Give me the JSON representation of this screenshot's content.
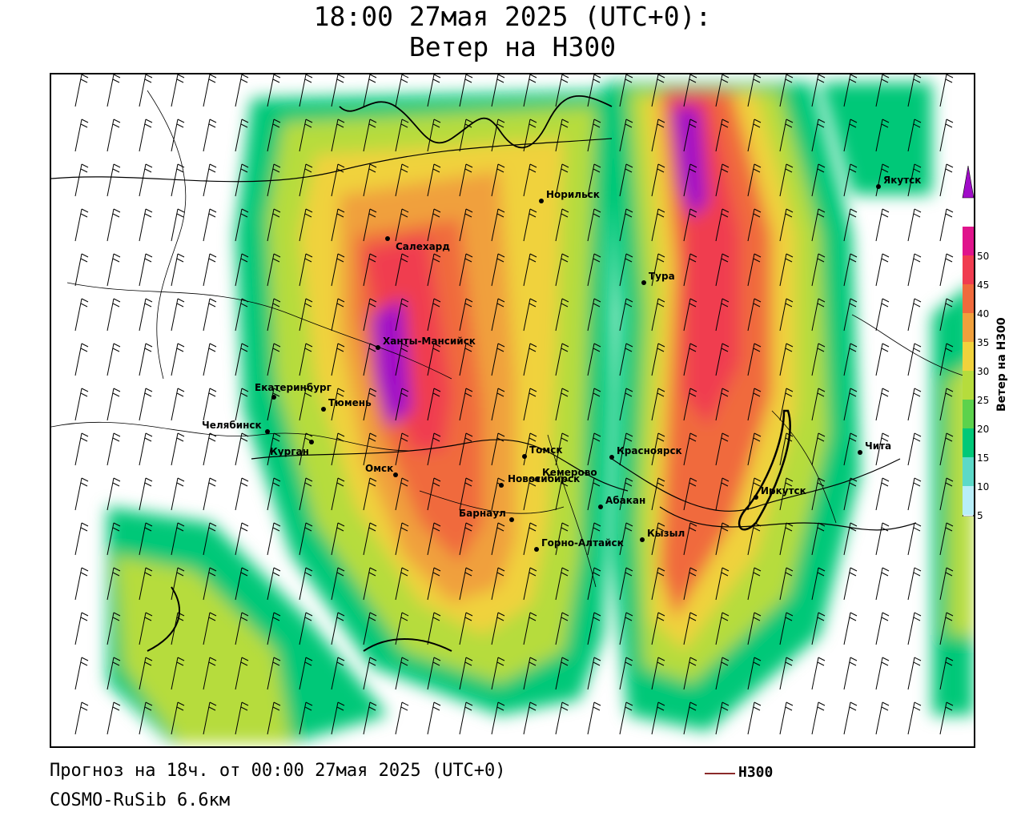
{
  "header": {
    "title_line1": "18:00 27мая 2025 (UTC+0):",
    "title_line2": "Ветер на H300"
  },
  "map": {
    "cities": [
      {
        "name": "Салехард"
      },
      {
        "name": "Норильск"
      },
      {
        "name": "Якутск"
      },
      {
        "name": "Тура"
      },
      {
        "name": "Ханты-Мансийск"
      },
      {
        "name": "Екатеринбург"
      },
      {
        "name": "Тюмень"
      },
      {
        "name": "Челябинск"
      },
      {
        "name": "Курган"
      },
      {
        "name": "Омск"
      },
      {
        "name": "Новосибирск"
      },
      {
        "name": "Томск"
      },
      {
        "name": "Кемерово"
      },
      {
        "name": "Барнаул"
      },
      {
        "name": "Красноярск"
      },
      {
        "name": "Абакан"
      },
      {
        "name": "Горно-Алтайск"
      },
      {
        "name": "Кызыл"
      },
      {
        "name": "Иркутск"
      },
      {
        "name": "Чита"
      }
    ]
  },
  "colorbar": {
    "label": "Ветер на H300",
    "ticks": [
      "5",
      "10",
      "15",
      "20",
      "25",
      "30",
      "35",
      "40",
      "45",
      "50"
    ],
    "colors": [
      "#b8eef8",
      "#5cd9c8",
      "#00c878",
      "#5cd24c",
      "#b6dc3c",
      "#f0d23c",
      "#f0a03c",
      "#f06a3c",
      "#f03c50",
      "#e0148c",
      "#a00cc8"
    ]
  },
  "footer": {
    "forecast": "Прогноз на 18ч. от 00:00 27мая 2025 (UTC+0)",
    "model": "COSMO-RuSib 6.6км",
    "legend_label": "H300",
    "legend_color": "#8b2a2a"
  }
}
